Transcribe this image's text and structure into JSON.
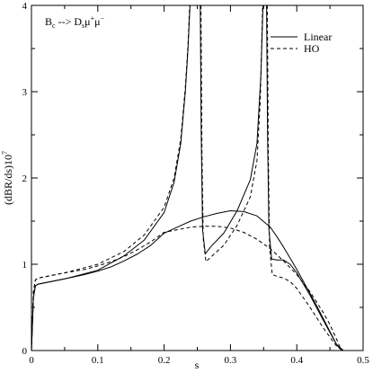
{
  "chart_data": {
    "type": "line",
    "xlabel": "s",
    "ylabel": "(dBR/ds)10",
    "ylabel_sup": "7",
    "xlim": [
      0,
      0.5
    ],
    "ylim": [
      0,
      4
    ],
    "x_ticks": [
      0,
      0.1,
      0.2,
      0.3,
      0.4,
      0.5
    ],
    "x_tick_labels": [
      "0",
      "0.1",
      "0.2",
      "0.3",
      "0.4",
      "0.5"
    ],
    "y_ticks": [
      0,
      1,
      2,
      3,
      4
    ],
    "y_tick_labels": [
      "0",
      "1",
      "2",
      "3",
      "4"
    ],
    "annotation": {
      "B": "B",
      "c": "c",
      "arrow": " --> ",
      "D": "D",
      "s": "s",
      "mu1": "μ",
      "plus": "+",
      "mu2": "μ",
      "minus": "−"
    },
    "legend": {
      "position": "top-right"
    },
    "series": [
      {
        "name": "Linear",
        "style": "solid",
        "color": "#000000",
        "segments": [
          {
            "x": [
              0.0,
              0.003,
              0.006,
              0.01,
              0.03,
              0.05,
              0.08,
              0.1,
              0.12,
              0.14,
              0.16,
              0.18,
              0.2,
              0.22,
              0.24,
              0.26,
              0.28,
              0.3,
              0.32,
              0.34,
              0.36,
              0.37,
              0.38,
              0.39,
              0.4,
              0.41,
              0.42,
              0.43,
              0.44,
              0.45,
              0.46,
              0.465,
              0.47
            ],
            "y": [
              0.0,
              0.62,
              0.75,
              0.77,
              0.8,
              0.83,
              0.88,
              0.92,
              0.97,
              1.04,
              1.12,
              1.22,
              1.36,
              1.43,
              1.5,
              1.55,
              1.59,
              1.62,
              1.61,
              1.56,
              1.43,
              1.32,
              1.2,
              1.07,
              0.94,
              0.8,
              0.66,
              0.52,
              0.37,
              0.22,
              0.07,
              0.02,
              0.0
            ]
          },
          {
            "x": [
              0.0,
              0.003,
              0.006,
              0.01,
              0.05,
              0.1,
              0.14,
              0.17,
              0.2,
              0.215,
              0.225,
              0.232,
              0.236,
              0.239
            ],
            "y": [
              0.0,
              0.62,
              0.75,
              0.77,
              0.83,
              0.93,
              1.1,
              1.28,
              1.6,
              1.95,
              2.4,
              3.0,
              3.5,
              4.0
            ]
          },
          {
            "x": [
              0.2545,
              0.256,
              0.258,
              0.262,
              0.27,
              0.29,
              0.31,
              0.33,
              0.34,
              0.346,
              0.349
            ],
            "y": [
              4.0,
              2.5,
              1.4,
              1.12,
              1.2,
              1.36,
              1.62,
              1.98,
              2.4,
              3.2,
              4.0
            ]
          },
          {
            "x": [
              0.3545,
              0.356,
              0.358,
              0.362,
              0.37,
              0.38,
              0.39,
              0.4,
              0.42,
              0.44,
              0.46,
              0.47
            ],
            "y": [
              4.0,
              2.5,
              1.4,
              1.06,
              1.05,
              1.05,
              1.0,
              0.9,
              0.64,
              0.35,
              0.07,
              0.0
            ]
          }
        ]
      },
      {
        "name": "HO",
        "style": "dashed",
        "color": "#000000",
        "segments": [
          {
            "x": [
              0.0,
              0.003,
              0.006,
              0.01,
              0.03,
              0.05,
              0.08,
              0.1,
              0.12,
              0.14,
              0.16,
              0.18,
              0.2,
              0.22,
              0.24,
              0.26,
              0.28,
              0.3,
              0.32,
              0.34,
              0.36,
              0.38,
              0.4,
              0.42,
              0.44,
              0.45,
              0.46,
              0.465,
              0.47
            ],
            "y": [
              0.0,
              0.68,
              0.82,
              0.84,
              0.87,
              0.9,
              0.94,
              0.98,
              1.03,
              1.09,
              1.17,
              1.26,
              1.37,
              1.4,
              1.43,
              1.44,
              1.44,
              1.42,
              1.37,
              1.29,
              1.18,
              1.04,
              0.88,
              0.68,
              0.44,
              0.3,
              0.13,
              0.04,
              0.0
            ]
          },
          {
            "x": [
              0.0,
              0.003,
              0.006,
              0.01,
              0.05,
              0.1,
              0.14,
              0.17,
              0.2,
              0.215,
              0.225,
              0.232,
              0.236,
              0.2385
            ],
            "y": [
              0.0,
              0.68,
              0.82,
              0.84,
              0.9,
              1.0,
              1.15,
              1.34,
              1.66,
              2.0,
              2.45,
              3.05,
              3.55,
              4.0
            ]
          },
          {
            "x": [
              0.2555,
              0.257,
              0.259,
              0.263,
              0.27,
              0.29,
              0.31,
              0.33,
              0.34,
              0.345,
              0.3485
            ],
            "y": [
              4.0,
              2.3,
              1.3,
              1.03,
              1.08,
              1.22,
              1.45,
              1.78,
              2.2,
              2.9,
              4.0
            ]
          },
          {
            "x": [
              0.3555,
              0.357,
              0.359,
              0.363,
              0.37,
              0.38,
              0.39,
              0.4,
              0.42,
              0.44,
              0.46,
              0.47
            ],
            "y": [
              4.0,
              2.3,
              1.2,
              0.88,
              0.86,
              0.84,
              0.8,
              0.72,
              0.5,
              0.26,
              0.05,
              0.0
            ]
          }
        ]
      }
    ]
  }
}
